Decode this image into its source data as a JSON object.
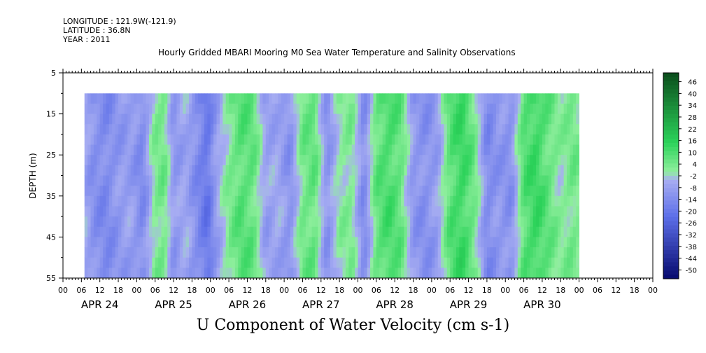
{
  "header": {
    "longitude": "LONGITUDE : 121.9W(-121.9)",
    "latitude": "LATITUDE : 36.8N",
    "year": "YEAR : 2011"
  },
  "chart_data": {
    "type": "heatmap",
    "title": "Hourly Gridded MBARI Mooring M0 Sea Water Temperature and Salinity Observations",
    "bottom_title": "U Component of Water Velocity (cm s-1)",
    "ylabel": "DEPTH (m)",
    "y_ticks": [
      "5",
      "15",
      "25",
      "35",
      "45",
      "55"
    ],
    "ylim": [
      5,
      55
    ],
    "hour_ticks": [
      "00",
      "06",
      "12",
      "18",
      "00",
      "06",
      "12",
      "18",
      "00",
      "06",
      "12",
      "18",
      "00",
      "06",
      "12",
      "18",
      "00",
      "06",
      "12",
      "18",
      "00",
      "06",
      "12",
      "18",
      "00",
      "06",
      "12",
      "18",
      "00",
      "06",
      "12",
      "18",
      "00"
    ],
    "day_labels": [
      "APR 24",
      "APR 25",
      "APR 26",
      "APR 27",
      "APR 28",
      "APR 29",
      "APR 30"
    ],
    "data_depth_range": [
      10,
      55
    ],
    "colorbar_labels": [
      "46",
      "40",
      "34",
      "28",
      "22",
      "16",
      "10",
      "4",
      "-2",
      "-8",
      "-14",
      "-20",
      "-26",
      "-32",
      "-38",
      "-44",
      "-50"
    ],
    "colorbar_range": [
      -50,
      50
    ],
    "time_start_hour": 7,
    "time_end_hour": 168,
    "column_profiles": [
      {
        "hour": 7,
        "u": -4
      },
      {
        "hour": 10,
        "u": -10
      },
      {
        "hour": 14,
        "u": -12
      },
      {
        "hour": 18,
        "u": -8
      },
      {
        "hour": 22,
        "u": -6
      },
      {
        "hour": 26,
        "u": -12
      },
      {
        "hour": 30,
        "u": 4
      },
      {
        "hour": 33,
        "u": 6
      },
      {
        "hour": 36,
        "u": -8
      },
      {
        "hour": 40,
        "u": -4
      },
      {
        "hour": 44,
        "u": -12
      },
      {
        "hour": 47,
        "u": -18
      },
      {
        "hour": 50,
        "u": -6
      },
      {
        "hour": 54,
        "u": 4
      },
      {
        "hour": 58,
        "u": 10
      },
      {
        "hour": 62,
        "u": 8
      },
      {
        "hour": 66,
        "u": -6
      },
      {
        "hour": 70,
        "u": -4
      },
      {
        "hour": 74,
        "u": -10
      },
      {
        "hour": 78,
        "u": 6
      },
      {
        "hour": 82,
        "u": 8
      },
      {
        "hour": 86,
        "u": -10
      },
      {
        "hour": 90,
        "u": 2
      },
      {
        "hour": 94,
        "u": 4
      },
      {
        "hour": 98,
        "u": -12
      },
      {
        "hour": 102,
        "u": 8
      },
      {
        "hour": 106,
        "u": 12
      },
      {
        "hour": 110,
        "u": 8
      },
      {
        "hour": 114,
        "u": -8
      },
      {
        "hour": 118,
        "u": -10
      },
      {
        "hour": 122,
        "u": -6
      },
      {
        "hour": 126,
        "u": 10
      },
      {
        "hour": 130,
        "u": 14
      },
      {
        "hour": 134,
        "u": 6
      },
      {
        "hour": 138,
        "u": -12
      },
      {
        "hour": 142,
        "u": -8
      },
      {
        "hour": 146,
        "u": -10
      },
      {
        "hour": 150,
        "u": 10
      },
      {
        "hour": 154,
        "u": 14
      },
      {
        "hour": 158,
        "u": 8
      },
      {
        "hour": 162,
        "u": 2
      },
      {
        "hour": 166,
        "u": 6
      },
      {
        "hour": 168,
        "u": 4
      }
    ],
    "colors": {
      "strong_positive": "#0b4d1c",
      "positive": "#2cd35a",
      "weak_positive": "#8fef9d",
      "weak_negative": "#a8aef2",
      "negative": "#5c6ee8",
      "strong_negative": "#060a6e"
    }
  }
}
